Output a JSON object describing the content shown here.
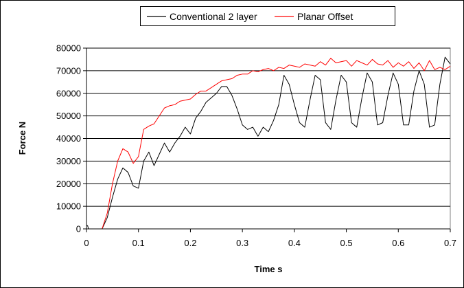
{
  "chart_data": {
    "type": "line",
    "title": "",
    "xlabel": "Time s",
    "ylabel": "Force N",
    "xlim": [
      0,
      0.7
    ],
    "ylim": [
      0,
      80000
    ],
    "xticks": [
      "0",
      "0.1",
      "0.2",
      "0.3",
      "0.4",
      "0.5",
      "0.6",
      "0.7"
    ],
    "yticks": [
      "0",
      "10000",
      "20000",
      "30000",
      "40000",
      "50000",
      "60000",
      "70000",
      "80000"
    ],
    "grid": "horizontal",
    "legend_position": "top",
    "series": [
      {
        "name": "Conventional 2 layer",
        "color": "#000000",
        "x": [
          0,
          0.002,
          0.004,
          0.03,
          0.04,
          0.05,
          0.06,
          0.07,
          0.08,
          0.09,
          0.1,
          0.11,
          0.12,
          0.13,
          0.14,
          0.15,
          0.16,
          0.17,
          0.18,
          0.19,
          0.2,
          0.21,
          0.22,
          0.23,
          0.24,
          0.25,
          0.26,
          0.27,
          0.28,
          0.29,
          0.3,
          0.31,
          0.32,
          0.33,
          0.34,
          0.35,
          0.36,
          0.37,
          0.38,
          0.39,
          0.4,
          0.41,
          0.42,
          0.43,
          0.44,
          0.45,
          0.46,
          0.47,
          0.48,
          0.49,
          0.5,
          0.51,
          0.52,
          0.53,
          0.54,
          0.55,
          0.56,
          0.57,
          0.58,
          0.59,
          0.6,
          0.61,
          0.62,
          0.63,
          0.64,
          0.65,
          0.66,
          0.67,
          0.68,
          0.69,
          0.7
        ],
        "y": [
          1500,
          1500,
          0,
          0,
          5000,
          14000,
          22000,
          27000,
          25000,
          19000,
          18000,
          30000,
          34000,
          28000,
          33000,
          38000,
          34000,
          38000,
          41000,
          45000,
          42000,
          49000,
          52000,
          56000,
          58000,
          60000,
          63000,
          63000,
          59000,
          53000,
          46000,
          44000,
          45000,
          41000,
          45000,
          43000,
          48000,
          55000,
          68000,
          64000,
          55000,
          47000,
          45000,
          57000,
          68000,
          66000,
          47000,
          44000,
          57000,
          68000,
          65000,
          47000,
          45000,
          58000,
          69000,
          65000,
          46000,
          47000,
          59000,
          69000,
          64000,
          46000,
          46000,
          61000,
          70000,
          64000,
          45000,
          46000,
          64000,
          76000,
          73000
        ]
      },
      {
        "name": "Planar Offset",
        "color": "#ff0000",
        "x": [
          0.03,
          0.04,
          0.05,
          0.06,
          0.07,
          0.08,
          0.09,
          0.1,
          0.11,
          0.12,
          0.13,
          0.14,
          0.15,
          0.16,
          0.17,
          0.18,
          0.19,
          0.2,
          0.21,
          0.22,
          0.23,
          0.24,
          0.25,
          0.26,
          0.27,
          0.28,
          0.29,
          0.3,
          0.31,
          0.32,
          0.33,
          0.34,
          0.35,
          0.36,
          0.37,
          0.38,
          0.39,
          0.4,
          0.41,
          0.42,
          0.43,
          0.44,
          0.45,
          0.46,
          0.47,
          0.48,
          0.49,
          0.5,
          0.51,
          0.52,
          0.53,
          0.54,
          0.55,
          0.56,
          0.57,
          0.58,
          0.59,
          0.6,
          0.61,
          0.62,
          0.63,
          0.64,
          0.65,
          0.66,
          0.67,
          0.68,
          0.69,
          0.7
        ],
        "y": [
          0,
          7000,
          20000,
          30000,
          35500,
          34000,
          29000,
          32000,
          44000,
          45500,
          46500,
          50000,
          53500,
          54500,
          55000,
          56500,
          57000,
          57500,
          59500,
          61000,
          61000,
          62500,
          64000,
          65500,
          66000,
          66500,
          68000,
          68500,
          68500,
          70000,
          69500,
          70500,
          71000,
          70000,
          71500,
          71000,
          72500,
          72000,
          71500,
          73000,
          72500,
          72000,
          74000,
          72500,
          75500,
          73500,
          74000,
          74500,
          72000,
          74500,
          73500,
          72500,
          75000,
          73000,
          72500,
          74500,
          71500,
          73500,
          72000,
          74000,
          71000,
          73500,
          70000,
          74500,
          70500,
          71500,
          70500,
          72000
        ]
      }
    ]
  }
}
